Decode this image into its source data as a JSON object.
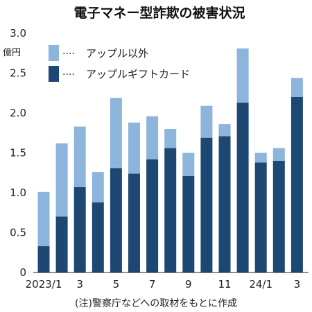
{
  "chart_data": {
    "type": "bar",
    "stacked": true,
    "title": "電子マネー型詐欺の被害状況",
    "unit": "億円",
    "ylim": [
      0,
      3.0
    ],
    "y_ticks": [
      "0",
      "0.5",
      "1.0",
      "1.5",
      "2.0",
      "2.5",
      "3.0"
    ],
    "categories": [
      "2023/1",
      "2",
      "3",
      "4",
      "5",
      "6",
      "7",
      "8",
      "9",
      "10",
      "11",
      "12",
      "24/1",
      "2",
      "3"
    ],
    "x_tick_labels": [
      "2023/1",
      "",
      "3",
      "",
      "5",
      "",
      "7",
      "",
      "9",
      "",
      "11",
      "",
      "24/1",
      "",
      "3"
    ],
    "series": [
      {
        "name": "アップルギフトカード",
        "color": "#1d4873",
        "values": [
          0.33,
          0.7,
          1.07,
          0.88,
          1.31,
          1.24,
          1.42,
          1.56,
          1.21,
          1.69,
          1.71,
          2.13,
          1.38,
          1.4,
          2.2
        ]
      },
      {
        "name": "アップル以外",
        "color": "#8db4db",
        "values": [
          0.68,
          0.92,
          0.76,
          0.38,
          0.88,
          0.64,
          0.54,
          0.24,
          0.29,
          0.4,
          0.15,
          0.68,
          0.12,
          0.16,
          0.24
        ]
      }
    ],
    "legend": {
      "position": "top-left",
      "items": [
        {
          "label": "アップル以外",
          "color": "#8db4db"
        },
        {
          "label": "アップルギフトカード",
          "color": "#1d4873"
        }
      ],
      "leader": "····"
    },
    "grid": false,
    "note": "(注)警察庁などへの取材をもとに作成"
  }
}
